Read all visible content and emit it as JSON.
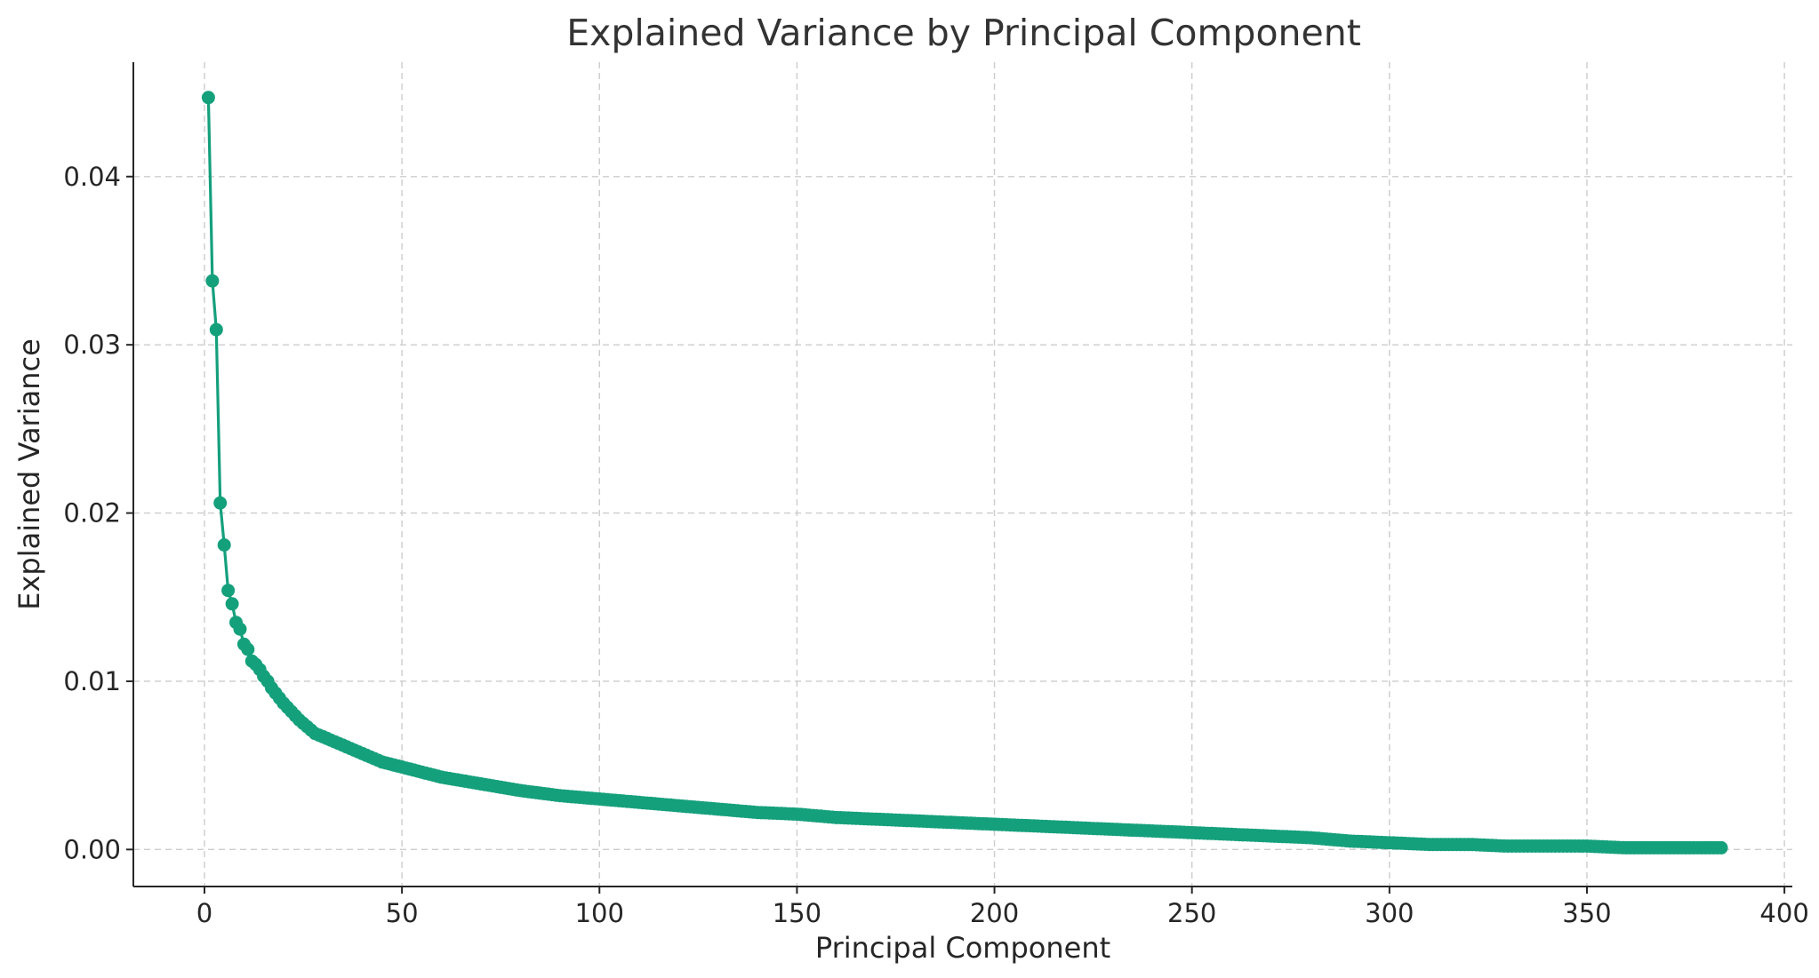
{
  "chart_data": {
    "type": "line",
    "title": "Explained Variance by Principal Component",
    "xlabel": "Principal Component",
    "ylabel": "Explained Variance",
    "xlim": [
      -18,
      402
    ],
    "ylim": [
      -0.0022,
      0.0468
    ],
    "xticks": [
      0,
      50,
      100,
      150,
      200,
      250,
      300,
      350,
      400
    ],
    "xtick_labels": [
      "0",
      "50",
      "100",
      "150",
      "200",
      "250",
      "300",
      "350",
      "400"
    ],
    "yticks": [
      0.0,
      0.01,
      0.02,
      0.03,
      0.04
    ],
    "ytick_labels": [
      "0.00",
      "0.01",
      "0.02",
      "0.03",
      "0.04"
    ],
    "grid": true,
    "marker": "circle",
    "color": "#15a07c",
    "series": [
      {
        "x": [
          1,
          2,
          3,
          4,
          5,
          6,
          7,
          8,
          9,
          10,
          11,
          12,
          13,
          14,
          15,
          16,
          17,
          18,
          19,
          20,
          22,
          24,
          26,
          28,
          30,
          33,
          36,
          40,
          45,
          50,
          55,
          60,
          65,
          70,
          80,
          90,
          100,
          110,
          120,
          130,
          140,
          150,
          160,
          170,
          180,
          190,
          200,
          210,
          220,
          230,
          240,
          250,
          260,
          270,
          280,
          290,
          300,
          310,
          320,
          330,
          340,
          350,
          360,
          370,
          380,
          384
        ],
        "y": [
          0.0447,
          0.0338,
          0.0309,
          0.0206,
          0.0181,
          0.0154,
          0.0146,
          0.0135,
          0.0131,
          0.0122,
          0.0119,
          0.0112,
          0.011,
          0.0107,
          0.0103,
          0.01,
          0.0096,
          0.0093,
          0.009,
          0.0087,
          0.0082,
          0.0077,
          0.0073,
          0.0069,
          0.0067,
          0.0064,
          0.0061,
          0.0057,
          0.0052,
          0.0049,
          0.0046,
          0.0043,
          0.0041,
          0.0039,
          0.0035,
          0.0032,
          0.003,
          0.0028,
          0.0026,
          0.0024,
          0.0022,
          0.0021,
          0.0019,
          0.0018,
          0.0017,
          0.0016,
          0.0015,
          0.0014,
          0.0013,
          0.0012,
          0.0011,
          0.001,
          0.0009,
          0.0008,
          0.0007,
          0.0005,
          0.0004,
          0.0003,
          0.0003,
          0.0002,
          0.0002,
          0.0002,
          0.0001,
          0.0001,
          0.0001,
          0.0001
        ]
      }
    ]
  }
}
